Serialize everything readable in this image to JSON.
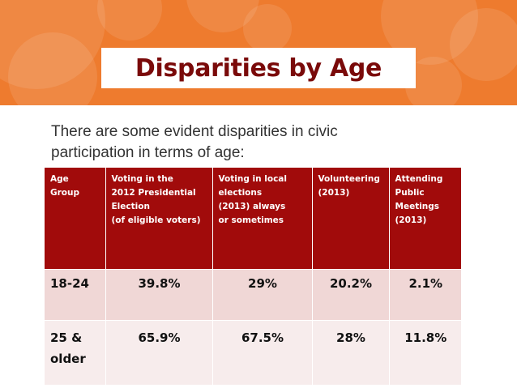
{
  "slide": {
    "title": "Disparities by Age",
    "intro": "There are some evident disparities in civic participation in terms of age:"
  },
  "table": {
    "headers": [
      "Age Group",
      "Voting in the 2012 Presidential Election (of eligible voters)",
      "Voting in local elections (2013) always or sometimes",
      "Volunteering (2013)",
      "Attending Public Meetings (2013)"
    ],
    "header_lines": [
      [
        "Age",
        "Group"
      ],
      [
        "Voting in the",
        "2012 Presidential",
        "Election",
        "(of eligible voters)"
      ],
      [
        "Voting in local",
        "elections",
        "(2013) always",
        "or sometimes"
      ],
      [
        "Volunteering",
        "(2013)"
      ],
      [
        "Attending",
        "Public",
        "Meetings",
        "(2013)"
      ]
    ],
    "rows": [
      {
        "age_group": "18-24",
        "presidential_2012": "39.8%",
        "local_elections_2013": "29%",
        "volunteering_2013": "20.2%",
        "public_meetings_2013": "2.1%"
      },
      {
        "age_group": "25 & older",
        "presidential_2012": "65.9%",
        "local_elections_2013": "67.5%",
        "volunteering_2013": "28%",
        "public_meetings_2013": "11.8%"
      }
    ]
  },
  "colors": {
    "banner": "#ee7b2e",
    "title_text": "#7a0a0a",
    "header_bg": "#a10b0b",
    "row1_bg": "#f0d7d6",
    "row2_bg": "#f7ecec"
  }
}
